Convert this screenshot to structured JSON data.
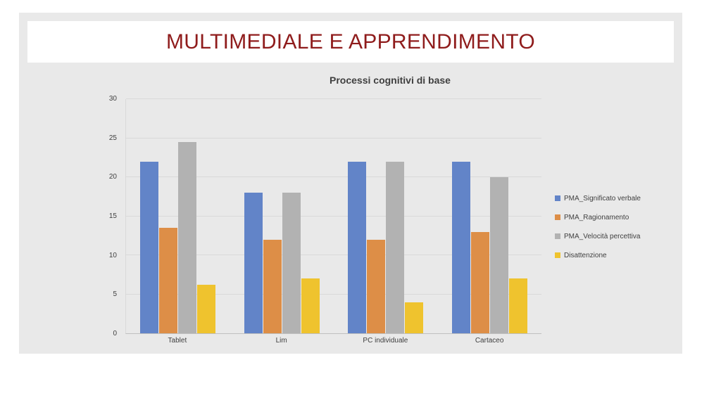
{
  "slide": {
    "title": "MULTIMEDIALE E APPRENDIMENTO",
    "title_color": "#8F1C1C",
    "background": "#E9E9E9",
    "banner_background": "#FFFFFF"
  },
  "chart_data": {
    "type": "bar",
    "title": "Processi cognitivi di base",
    "categories": [
      "Tablet",
      "Lim",
      "PC individuale",
      "Cartaceo"
    ],
    "series": [
      {
        "name": "PMA_Significato verbale",
        "color": "#6284C8",
        "values": [
          22,
          18,
          22,
          22
        ]
      },
      {
        "name": "PMA_Ragionamento",
        "color": "#DD8E47",
        "values": [
          13.5,
          12,
          12,
          13
        ]
      },
      {
        "name": "PMA_Velocità percettiva",
        "color": "#B2B2B2",
        "values": [
          24.5,
          18,
          22,
          20
        ]
      },
      {
        "name": "Disattenzione",
        "color": "#EFC32E",
        "values": [
          6.2,
          7,
          4,
          7
        ]
      }
    ],
    "ylim": [
      0,
      30
    ],
    "yticks": [
      0,
      5,
      10,
      15,
      20,
      25,
      30
    ],
    "grid": true,
    "legend_position": "right",
    "gridline_color": "#D9D9D9",
    "axis_line_color": "#BFBFBF"
  }
}
